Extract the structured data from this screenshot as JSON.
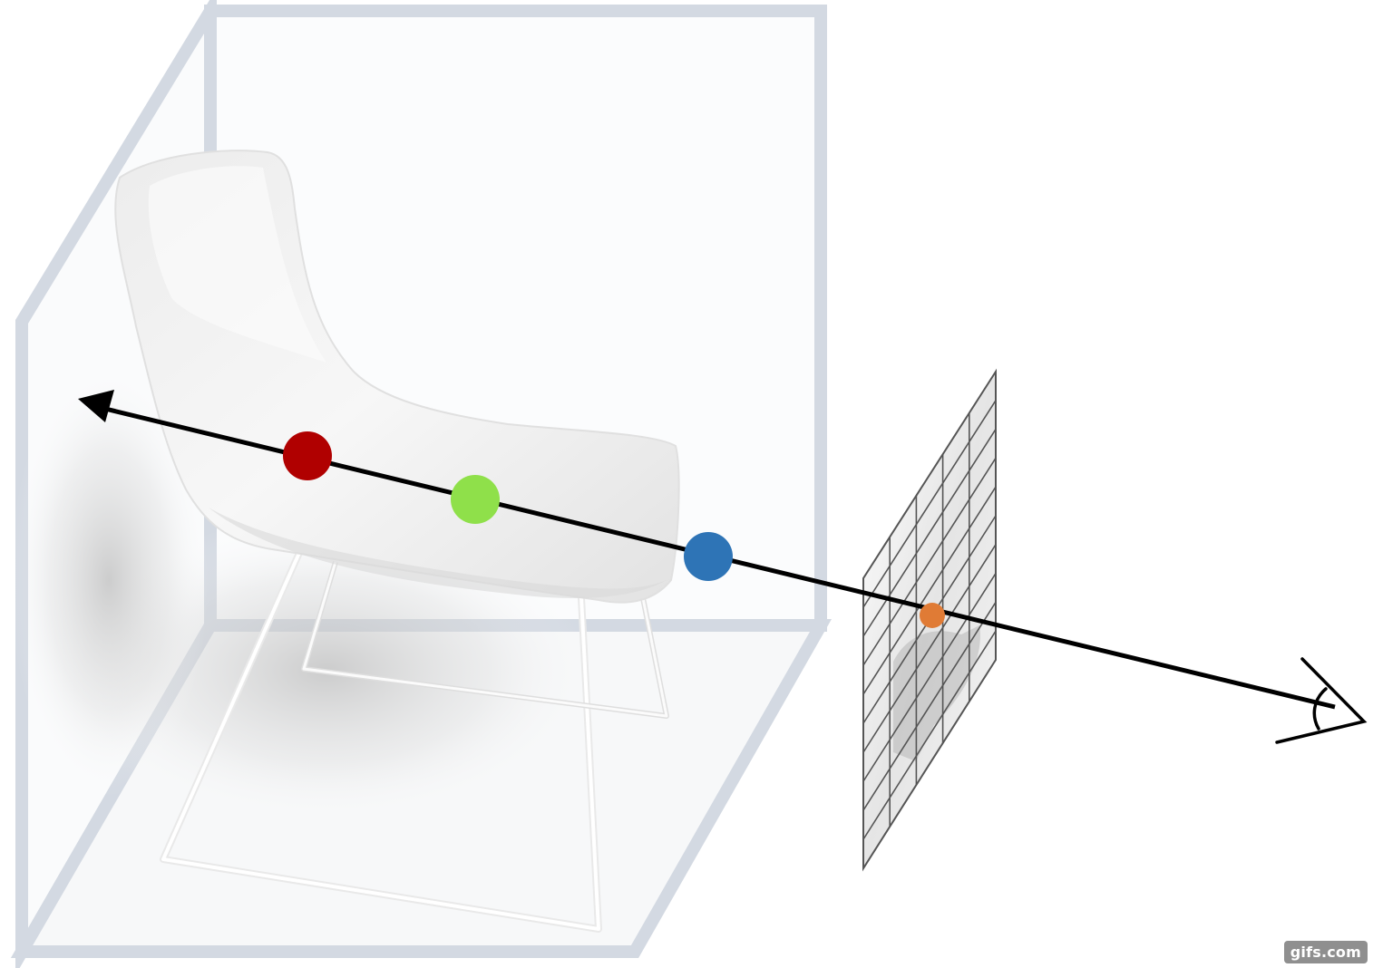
{
  "scene": {
    "colors": {
      "box_frame": "#d3d9e2",
      "box_fill": "#fafbfc",
      "chair": "#f2f2f2",
      "chair_shade": "#dcdcdc",
      "ray": "#000000",
      "grid_line": "#555555"
    },
    "sample_points": [
      {
        "name": "red-sample-point",
        "color": "#b00000"
      },
      {
        "name": "green-sample-point",
        "color": "#8fe04a"
      },
      {
        "name": "blue-sample-point",
        "color": "#2e74b6"
      }
    ],
    "pixel_point": {
      "name": "pixel-intersection-point",
      "color": "#e07b35"
    },
    "icons": [
      "camera-eye-icon",
      "ray-arrowhead-icon"
    ],
    "watermark": "gifs.com"
  }
}
